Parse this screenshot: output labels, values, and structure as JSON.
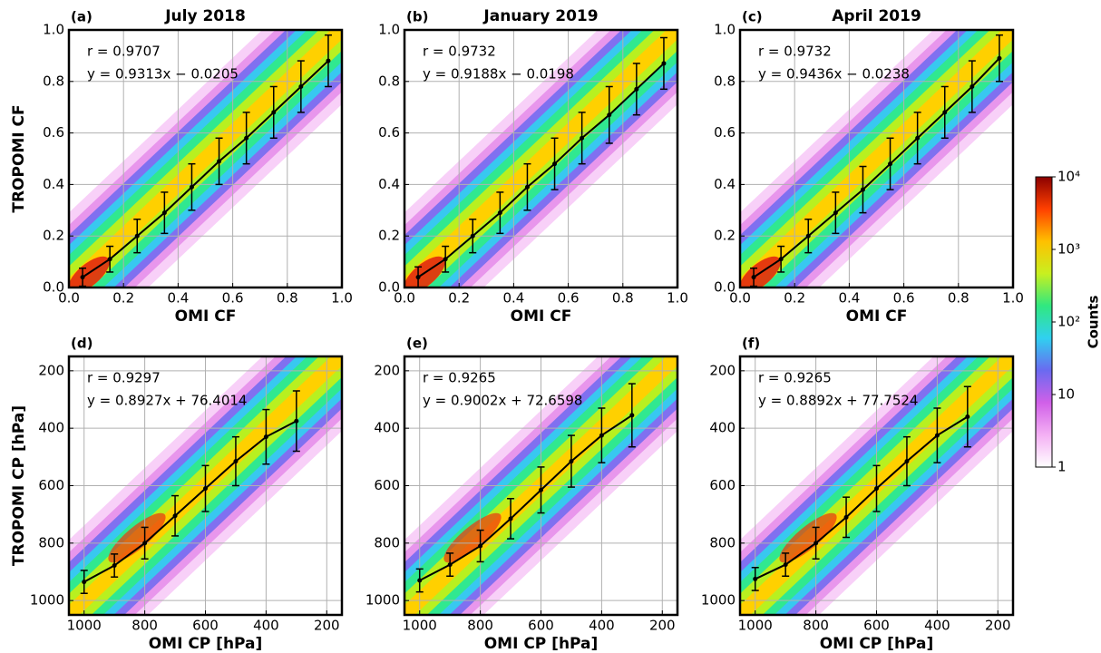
{
  "chart_data": [
    {
      "type": "line",
      "panel_label": "(a)",
      "title": "July 2018",
      "x_label": "OMI CF",
      "y_label": "TROPOMI CF",
      "annotations": [
        "r = 0.9707",
        "y = 0.9313x − 0.0205"
      ],
      "x": [
        0.05,
        0.15,
        0.25,
        0.35,
        0.45,
        0.55,
        0.65,
        0.75,
        0.85,
        0.95
      ],
      "series": [
        {
          "color": "#000000",
          "values": [
            0.04,
            0.11,
            0.2,
            0.29,
            0.39,
            0.49,
            0.58,
            0.68,
            0.78,
            0.88
          ],
          "errors": [
            0.035,
            0.05,
            0.065,
            0.08,
            0.09,
            0.09,
            0.1,
            0.1,
            0.1,
            0.1
          ]
        }
      ],
      "xlim": [
        0,
        1
      ],
      "ylim": [
        0,
        1
      ],
      "xticks": [
        {
          "value": 0,
          "label": "0.0"
        },
        {
          "value": 0.2,
          "label": "0.2"
        },
        {
          "value": 0.4,
          "label": "0.4"
        },
        {
          "value": 0.6,
          "label": "0.6"
        },
        {
          "value": 0.8,
          "label": "0.8"
        },
        {
          "value": 1,
          "label": "1.0"
        }
      ],
      "yticks": [
        {
          "value": 0,
          "label": "0.0"
        },
        {
          "value": 0.2,
          "label": "0.2"
        },
        {
          "value": 0.4,
          "label": "0.4"
        },
        {
          "value": 0.6,
          "label": "0.6"
        },
        {
          "value": 0.8,
          "label": "0.8"
        },
        {
          "value": 1,
          "label": "1.0"
        }
      ],
      "grid": true
    },
    {
      "type": "line",
      "panel_label": "(b)",
      "title": "January 2019",
      "x_label": "OMI CF",
      "annotations": [
        "r = 0.9732",
        "y = 0.9188x − 0.0198"
      ],
      "x": [
        0.05,
        0.15,
        0.25,
        0.35,
        0.45,
        0.55,
        0.65,
        0.75,
        0.85,
        0.95
      ],
      "series": [
        {
          "color": "#000000",
          "values": [
            0.04,
            0.11,
            0.2,
            0.29,
            0.39,
            0.48,
            0.58,
            0.67,
            0.77,
            0.87
          ],
          "errors": [
            0.04,
            0.05,
            0.065,
            0.08,
            0.09,
            0.1,
            0.1,
            0.11,
            0.1,
            0.1
          ]
        }
      ],
      "xlim": [
        0,
        1
      ],
      "ylim": [
        0,
        1
      ],
      "xticks": [
        {
          "value": 0,
          "label": "0.0"
        },
        {
          "value": 0.2,
          "label": "0.2"
        },
        {
          "value": 0.4,
          "label": "0.4"
        },
        {
          "value": 0.6,
          "label": "0.6"
        },
        {
          "value": 0.8,
          "label": "0.8"
        },
        {
          "value": 1,
          "label": "1.0"
        }
      ],
      "yticks": [
        {
          "value": 0,
          "label": "0.0"
        },
        {
          "value": 0.2,
          "label": "0.2"
        },
        {
          "value": 0.4,
          "label": "0.4"
        },
        {
          "value": 0.6,
          "label": "0.6"
        },
        {
          "value": 0.8,
          "label": "0.8"
        },
        {
          "value": 1,
          "label": "1.0"
        }
      ],
      "grid": true
    },
    {
      "type": "line",
      "panel_label": "(c)",
      "title": "April 2019",
      "x_label": "OMI CF",
      "annotations": [
        "r = 0.9732",
        "y = 0.9436x − 0.0238"
      ],
      "x": [
        0.05,
        0.15,
        0.25,
        0.35,
        0.45,
        0.55,
        0.65,
        0.75,
        0.85,
        0.95
      ],
      "series": [
        {
          "color": "#000000",
          "values": [
            0.04,
            0.11,
            0.2,
            0.29,
            0.38,
            0.48,
            0.58,
            0.68,
            0.78,
            0.89
          ],
          "errors": [
            0.035,
            0.05,
            0.065,
            0.08,
            0.09,
            0.1,
            0.1,
            0.1,
            0.1,
            0.09
          ]
        }
      ],
      "xlim": [
        0,
        1
      ],
      "ylim": [
        0,
        1
      ],
      "xticks": [
        {
          "value": 0,
          "label": "0.0"
        },
        {
          "value": 0.2,
          "label": "0.2"
        },
        {
          "value": 0.4,
          "label": "0.4"
        },
        {
          "value": 0.6,
          "label": "0.6"
        },
        {
          "value": 0.8,
          "label": "0.8"
        },
        {
          "value": 1,
          "label": "1.0"
        }
      ],
      "yticks": [
        {
          "value": 0,
          "label": "0.0"
        },
        {
          "value": 0.2,
          "label": "0.2"
        },
        {
          "value": 0.4,
          "label": "0.4"
        },
        {
          "value": 0.6,
          "label": "0.6"
        },
        {
          "value": 0.8,
          "label": "0.8"
        },
        {
          "value": 1,
          "label": "1.0"
        }
      ],
      "grid": true
    },
    {
      "type": "line",
      "panel_label": "(d)",
      "x_label": "OMI CP [hPa]",
      "y_label": "TROPOMI CP [hPa]",
      "annotations": [
        "r = 0.9297",
        "y = 0.8927x + 76.4014"
      ],
      "x": [
        1000,
        900,
        800,
        700,
        600,
        500,
        400,
        300
      ],
      "series": [
        {
          "color": "#000000",
          "values": [
            935,
            878,
            800,
            705,
            610,
            515,
            430,
            375
          ],
          "errors": [
            40,
            40,
            55,
            70,
            80,
            85,
            95,
            105
          ]
        }
      ],
      "xlim": [
        1050,
        150
      ],
      "ylim": [
        1050,
        150
      ],
      "xticks": [
        1000,
        800,
        600,
        400,
        200
      ],
      "yticks": [
        200,
        400,
        600,
        800,
        1000
      ],
      "grid": true
    },
    {
      "type": "line",
      "panel_label": "(e)",
      "x_label": "OMI CP [hPa]",
      "annotations": [
        "r = 0.9265",
        "y = 0.9002x + 72.6598"
      ],
      "x": [
        1000,
        900,
        800,
        700,
        600,
        500,
        400,
        300
      ],
      "series": [
        {
          "color": "#000000",
          "values": [
            930,
            875,
            810,
            715,
            615,
            515,
            425,
            355
          ],
          "errors": [
            40,
            40,
            55,
            70,
            80,
            90,
            95,
            110
          ]
        }
      ],
      "xlim": [
        1050,
        150
      ],
      "ylim": [
        1050,
        150
      ],
      "xticks": [
        1000,
        800,
        600,
        400,
        200
      ],
      "yticks": [
        200,
        400,
        600,
        800,
        1000
      ],
      "grid": true
    },
    {
      "type": "line",
      "panel_label": "(f)",
      "x_label": "OMI CP [hPa]",
      "annotations": [
        "r = 0.9265",
        "y = 0.8892x + 77.7524"
      ],
      "x": [
        1000,
        900,
        800,
        700,
        600,
        500,
        400,
        300
      ],
      "series": [
        {
          "color": "#000000",
          "values": [
            925,
            875,
            800,
            710,
            610,
            515,
            425,
            360
          ],
          "errors": [
            40,
            40,
            55,
            70,
            80,
            85,
            95,
            105
          ]
        }
      ],
      "xlim": [
        1050,
        150
      ],
      "ylim": [
        1050,
        150
      ],
      "xticks": [
        1000,
        800,
        600,
        400,
        200
      ],
      "yticks": [
        200,
        400,
        600,
        800,
        1000
      ],
      "grid": true
    },
    {
      "type": "colorbar",
      "label": "Counts",
      "log": true,
      "lim": [
        1,
        10000
      ],
      "ticks": [
        {
          "value": 10000,
          "label": "10⁴"
        },
        {
          "value": 1000,
          "label": "10³"
        },
        {
          "value": 100,
          "label": "10²"
        },
        10,
        1
      ],
      "colors": [
        "#ffffff",
        "#f4b0f4",
        "#d060e8",
        "#6a6af0",
        "#30d0f0",
        "#30e880",
        "#c8f020",
        "#ffc000",
        "#ff4000",
        "#8b0000"
      ]
    }
  ]
}
